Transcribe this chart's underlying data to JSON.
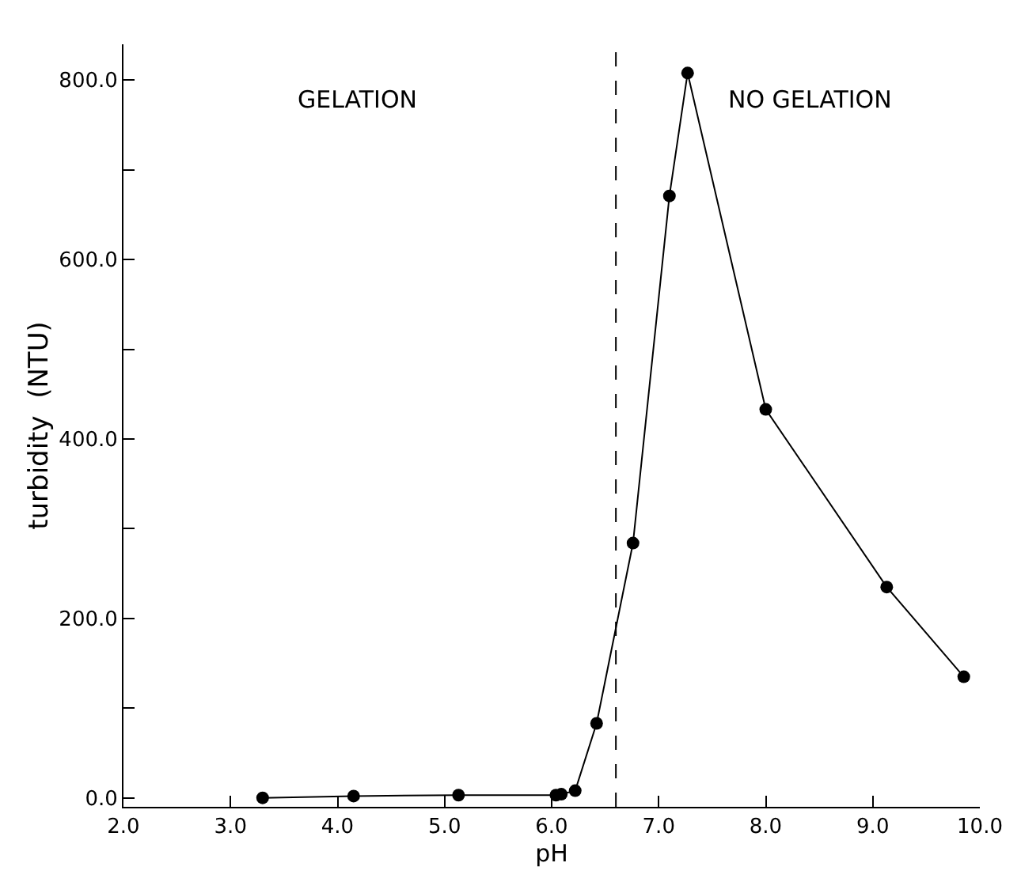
{
  "chart_data": {
    "type": "line",
    "xlabel": "pH",
    "ylabel": "turbidity  (NTU)",
    "series": [
      {
        "color": "#000000",
        "x": [
          3.3,
          4.15,
          5.13,
          6.04,
          6.09,
          6.22,
          6.42,
          6.76,
          7.1,
          7.27,
          8.0,
          9.13,
          9.85
        ],
        "values": [
          0,
          2,
          3,
          3,
          4,
          8,
          83,
          284,
          671,
          808,
          433,
          235,
          135
        ]
      }
    ],
    "xlim": [
      2,
      10
    ],
    "ylim": [
      -10,
      840
    ],
    "xticks": [
      {
        "value": 2,
        "label": "2.0"
      },
      {
        "value": 3,
        "label": "3.0"
      },
      {
        "value": 4,
        "label": "4.0"
      },
      {
        "value": 5,
        "label": "5.0"
      },
      {
        "value": 6,
        "label": "6.0"
      },
      {
        "value": 7,
        "label": "7.0"
      },
      {
        "value": 8,
        "label": "8.0"
      },
      {
        "value": 9,
        "label": "9.0"
      },
      {
        "value": 10,
        "label": "10.0"
      }
    ],
    "yticks": [
      {
        "value": 0,
        "label": "0.0"
      },
      {
        "value": 100,
        "label": null
      },
      {
        "value": 200,
        "label": "200.0"
      },
      {
        "value": 300,
        "label": null
      },
      {
        "value": 400,
        "label": "400.0"
      },
      {
        "value": 500,
        "label": null
      },
      {
        "value": 600,
        "label": "600.0"
      },
      {
        "value": 700,
        "label": null
      },
      {
        "value": 800,
        "label": "800.0"
      }
    ],
    "ref_lines": [
      {
        "axis": "x",
        "value": 6.6,
        "line_style": "dashed",
        "color": "#000000"
      }
    ],
    "annotations": [
      "GELATION",
      "NO GELATION"
    ],
    "marker": "circle",
    "line_style": "solid",
    "grid": false
  }
}
